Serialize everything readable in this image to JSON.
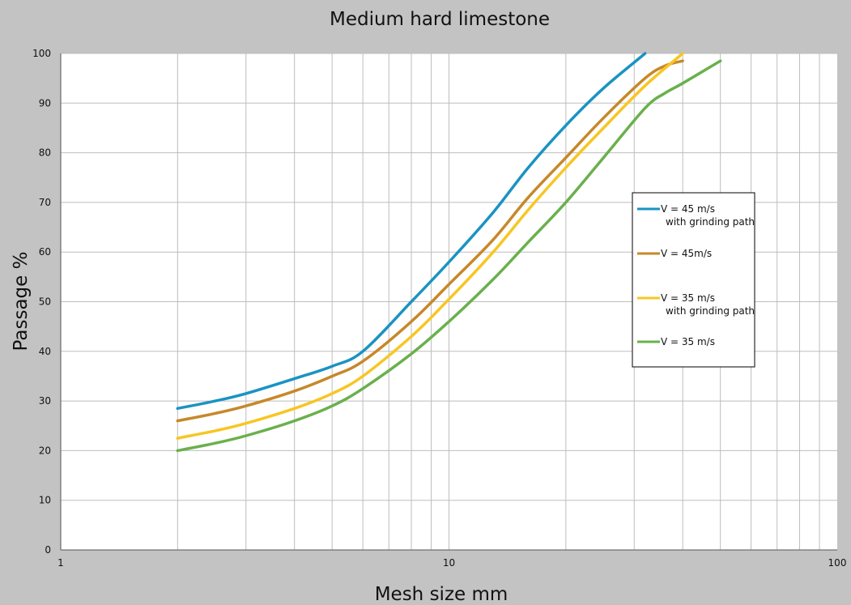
{
  "chart_data": {
    "type": "line",
    "title": "Medium hard limestone",
    "xlabel": "Mesh size mm",
    "ylabel": "Passage %",
    "x_scale": "log",
    "xlim": [
      1,
      100
    ],
    "ylim": [
      0,
      100
    ],
    "x_tick_labels": [
      "1",
      "10",
      "100"
    ],
    "y_ticks": [
      0,
      10,
      20,
      30,
      40,
      50,
      60,
      70,
      80,
      90,
      100
    ],
    "grid": true,
    "legend_position": "right",
    "colors": {
      "background": "#c3c3c3",
      "plot_background": "#ffffff",
      "grid": "#bdbdbd"
    },
    "series": [
      {
        "name": "V = 45 m/s\nwith grinding path",
        "color": "#1a93c2",
        "x": [
          2,
          2.5,
          3,
          4,
          5,
          6,
          8,
          10,
          13,
          16,
          20,
          25,
          32
        ],
        "y": [
          28.5,
          30,
          31.5,
          34.5,
          37,
          40,
          50,
          58,
          68,
          77,
          85.5,
          93,
          100
        ]
      },
      {
        "name": "V = 45m/s",
        "color": "#c7882a",
        "x": [
          2,
          2.5,
          3,
          4,
          5,
          6,
          8,
          10,
          13,
          16,
          20,
          25,
          32,
          36,
          40
        ],
        "y": [
          26,
          27.5,
          29,
          32,
          35,
          38,
          46,
          53.5,
          62.5,
          71,
          79,
          87,
          95,
          97.5,
          98.5
        ]
      },
      {
        "name": "V = 35 m/s\nwith grinding path",
        "color": "#f7c623",
        "x": [
          2,
          2.5,
          3,
          4,
          5,
          6,
          8,
          10,
          13,
          16,
          20,
          25,
          32,
          40
        ],
        "y": [
          22.5,
          24,
          25.5,
          28.5,
          31.5,
          35,
          43,
          50.5,
          60,
          68.5,
          77,
          85,
          93.5,
          100
        ]
      },
      {
        "name": "V = 35 m/s",
        "color": "#6ab04c",
        "x": [
          2,
          2.5,
          3,
          4,
          5,
          6,
          8,
          10,
          13,
          16,
          20,
          25,
          32,
          36,
          40,
          50
        ],
        "y": [
          20,
          21.5,
          23,
          26,
          29,
          32.5,
          39.5,
          46,
          54.5,
          62,
          70,
          79,
          89,
          92,
          94,
          98.5
        ]
      }
    ]
  }
}
